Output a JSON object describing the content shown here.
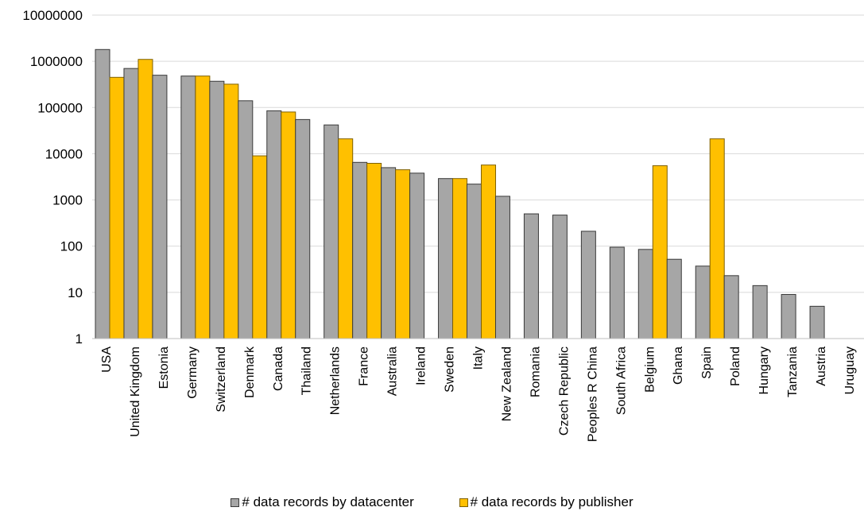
{
  "chart_data": {
    "type": "bar",
    "title": "",
    "xlabel": "",
    "ylabel": "",
    "yscale": "log",
    "ylim": [
      1,
      10000000
    ],
    "yticks": [
      "1",
      "10",
      "100",
      "1000",
      "10000",
      "100000",
      "1000000",
      "10000000"
    ],
    "grid": "horizontal",
    "legend_position": "bottom",
    "categories": [
      "USA",
      "United Kingdom",
      "Estonia",
      "Germany",
      "Switzerland",
      "Denmark",
      "Canada",
      "Thailand",
      "Netherlands",
      "France",
      "Australia",
      "Ireland",
      "Sweden",
      "Italy",
      "New Zealand",
      "Romania",
      "Czech Republic",
      "Peoples R China",
      "South Africa",
      "Belgium",
      "Ghana",
      "Spain",
      "Poland",
      "Hungary",
      "Tanzania",
      "Austria",
      "Uruguay"
    ],
    "series": [
      {
        "name": "# data records by datacenter",
        "color": "#a6a6a6",
        "stroke": "#3a3a3a",
        "values": [
          1800000,
          700000,
          500000,
          480000,
          370000,
          140000,
          85000,
          55000,
          42000,
          6500,
          5000,
          3800,
          2900,
          2200,
          1200,
          500,
          470,
          210,
          95,
          85,
          52,
          37,
          23,
          14,
          9,
          5,
          null
        ]
      },
      {
        "name": "# data records by publisher",
        "color": "#ffc000",
        "stroke": "#7f6000",
        "values": [
          450000,
          1100000,
          null,
          480000,
          320000,
          9000,
          80000,
          null,
          21000,
          6200,
          4500,
          null,
          2900,
          5700,
          null,
          null,
          null,
          null,
          null,
          5500,
          null,
          21000,
          null,
          null,
          null,
          null,
          null
        ]
      }
    ]
  }
}
